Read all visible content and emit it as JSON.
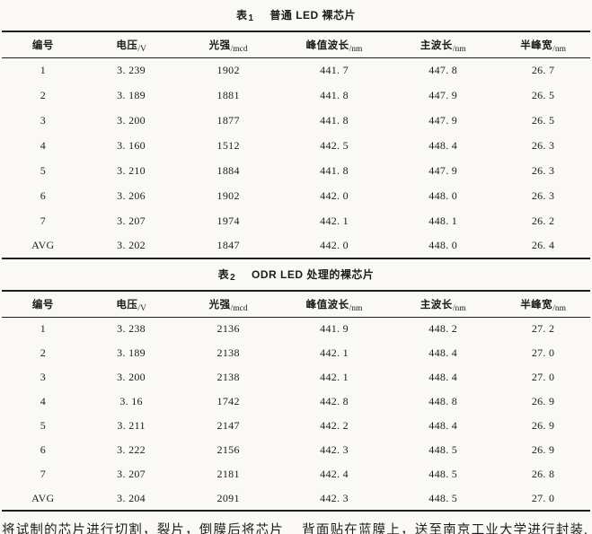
{
  "page": {
    "colors": {
      "ink": "#1b1b1b",
      "rule": "#1f1f1f",
      "paper": "#faf9f6"
    }
  },
  "tables": [
    {
      "caption_label": "表",
      "caption_number": "1",
      "caption_title": "普通 LED 裸芯片",
      "columns": [
        {
          "name": "编号",
          "unit": ""
        },
        {
          "name": "电压",
          "unit": "/V"
        },
        {
          "name": "光强",
          "unit": "/mcd"
        },
        {
          "name": "峰值波长",
          "unit": "/nm"
        },
        {
          "name": "主波长",
          "unit": "/nm"
        },
        {
          "name": "半峰宽",
          "unit": "/nm"
        }
      ],
      "rows": [
        [
          "1",
          "3. 239",
          "1902",
          "441. 7",
          "447. 8",
          "26. 7"
        ],
        [
          "2",
          "3. 189",
          "1881",
          "441. 8",
          "447. 9",
          "26. 5"
        ],
        [
          "3",
          "3. 200",
          "1877",
          "441. 8",
          "447. 9",
          "26. 5"
        ],
        [
          "4",
          "3. 160",
          "1512",
          "442. 5",
          "448. 4",
          "26. 3"
        ],
        [
          "5",
          "3. 210",
          "1884",
          "441. 8",
          "447. 9",
          "26. 3"
        ],
        [
          "6",
          "3. 206",
          "1902",
          "442. 0",
          "448. 0",
          "26. 3"
        ],
        [
          "7",
          "3. 207",
          "1974",
          "442. 1",
          "448. 1",
          "26. 2"
        ],
        [
          "AVG",
          "3. 202",
          "1847",
          "442. 0",
          "448. 0",
          "26. 4"
        ]
      ]
    },
    {
      "caption_label": "表",
      "caption_number": "2",
      "caption_title": "ODR LED 处理的裸芯片",
      "columns": [
        {
          "name": "编号",
          "unit": ""
        },
        {
          "name": "电压",
          "unit": "/V"
        },
        {
          "name": "光强",
          "unit": "/mcd"
        },
        {
          "name": "峰值波长",
          "unit": "/nm"
        },
        {
          "name": "主波长",
          "unit": "/nm"
        },
        {
          "name": "半峰宽",
          "unit": "/nm"
        }
      ],
      "rows": [
        [
          "1",
          "3. 238",
          "2136",
          "441. 9",
          "448. 2",
          "27. 2"
        ],
        [
          "2",
          "3. 189",
          "2138",
          "442. 1",
          "448. 4",
          "27. 0"
        ],
        [
          "3",
          "3. 200",
          "2138",
          "442. 1",
          "448. 4",
          "27. 0"
        ],
        [
          "4",
          "3. 16",
          "1742",
          "442. 8",
          "448. 8",
          "26. 9"
        ],
        [
          "5",
          "3. 211",
          "2147",
          "442. 2",
          "448. 4",
          "26. 9"
        ],
        [
          "6",
          "3. 222",
          "2156",
          "442. 3",
          "448. 5",
          "26. 9"
        ],
        [
          "7",
          "3. 207",
          "2181",
          "442. 4",
          "448. 5",
          "26. 8"
        ],
        [
          "AVG",
          "3. 204",
          "2091",
          "442. 3",
          "448. 5",
          "27. 0"
        ]
      ]
    }
  ],
  "footer": {
    "left_text": "将试制的芯片进行切割，裂片，倒膜后将芯片",
    "right_text": "背面贴在蓝膜上，送至南京工业大学进行封装."
  }
}
